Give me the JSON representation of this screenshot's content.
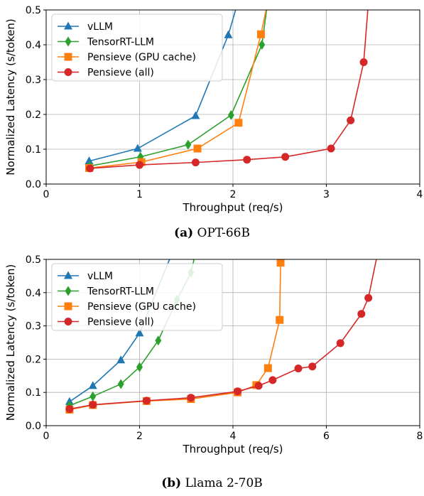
{
  "chart_data": [
    {
      "type": "line",
      "xlabel": "Throughput (req/s)",
      "ylabel": "Normalized Latency (s/token)",
      "xlim": [
        0,
        4
      ],
      "ylim": [
        0,
        0.5
      ],
      "xticks": [
        "0",
        "1",
        "2",
        "3",
        "4"
      ],
      "yticks": [
        "0.0",
        "0.1",
        "0.2",
        "0.3",
        "0.4",
        "0.5"
      ],
      "grid": true,
      "legend_position": "top-left",
      "series": [
        {
          "name": "vLLM",
          "color": "#1f77b4",
          "marker": "triangle",
          "points": [
            [
              0.46,
              0.066
            ],
            [
              0.98,
              0.102
            ],
            [
              1.6,
              0.196
            ],
            [
              1.95,
              0.428
            ],
            [
              2.05,
              0.52
            ]
          ]
        },
        {
          "name": "TensorRT-LLM",
          "color": "#2ca02c",
          "marker": "diamond",
          "points": [
            [
              0.47,
              0.052
            ],
            [
              1.01,
              0.078
            ],
            [
              1.52,
              0.113
            ],
            [
              1.98,
              0.198
            ],
            [
              2.31,
              0.4
            ],
            [
              2.37,
              0.52
            ]
          ]
        },
        {
          "name": "Pensieve (GPU cache)",
          "color": "#ff7f0e",
          "marker": "square",
          "points": [
            [
              0.46,
              0.046
            ],
            [
              1.02,
              0.063
            ],
            [
              1.62,
              0.102
            ],
            [
              2.06,
              0.176
            ],
            [
              2.3,
              0.43
            ],
            [
              2.37,
              0.52
            ]
          ]
        },
        {
          "name": "Pensieve (all)",
          "color": "#d62728",
          "marker": "circle",
          "points": [
            [
              0.47,
              0.045
            ],
            [
              1.0,
              0.055
            ],
            [
              1.6,
              0.062
            ],
            [
              2.15,
              0.07
            ],
            [
              2.56,
              0.078
            ],
            [
              3.05,
              0.102
            ],
            [
              3.26,
              0.183
            ],
            [
              3.4,
              0.35
            ],
            [
              3.45,
              0.52
            ]
          ]
        }
      ]
    },
    {
      "type": "line",
      "xlabel": "Throughput (req/s)",
      "ylabel": "Normalized Latency (s/token)",
      "xlim": [
        0,
        8
      ],
      "ylim": [
        0,
        0.5
      ],
      "xticks": [
        "0",
        "2",
        "4",
        "6",
        "8"
      ],
      "yticks": [
        "0.0",
        "0.1",
        "0.2",
        "0.3",
        "0.4",
        "0.5"
      ],
      "grid": true,
      "legend_position": "top-left",
      "series": [
        {
          "name": "vLLM",
          "color": "#1f77b4",
          "marker": "triangle",
          "points": [
            [
              0.5,
              0.072
            ],
            [
              1.0,
              0.12
            ],
            [
              1.6,
              0.197
            ],
            [
              2.0,
              0.278
            ],
            [
              2.7,
              0.52
            ]
          ]
        },
        {
          "name": "TensorRT-LLM",
          "color": "#2ca02c",
          "marker": "diamond",
          "points": [
            [
              0.5,
              0.06
            ],
            [
              1.0,
              0.088
            ],
            [
              1.6,
              0.125
            ],
            [
              2.0,
              0.176
            ],
            [
              2.4,
              0.256
            ],
            [
              2.8,
              0.378
            ],
            [
              3.1,
              0.46
            ],
            [
              3.2,
              0.52
            ]
          ]
        },
        {
          "name": "Pensieve (GPU cache)",
          "color": "#ff7f0e",
          "marker": "square",
          "points": [
            [
              0.5,
              0.048
            ],
            [
              1.0,
              0.062
            ],
            [
              2.15,
              0.074
            ],
            [
              3.1,
              0.08
            ],
            [
              4.1,
              0.1
            ],
            [
              4.5,
              0.122
            ],
            [
              4.75,
              0.173
            ],
            [
              5.0,
              0.318
            ],
            [
              5.02,
              0.49
            ],
            [
              5.03,
              0.52
            ]
          ]
        },
        {
          "name": "Pensieve (all)",
          "color": "#d62728",
          "marker": "circle",
          "points": [
            [
              0.5,
              0.05
            ],
            [
              1.0,
              0.063
            ],
            [
              2.15,
              0.075
            ],
            [
              3.1,
              0.084
            ],
            [
              4.1,
              0.103
            ],
            [
              4.55,
              0.12
            ],
            [
              4.85,
              0.137
            ],
            [
              5.4,
              0.172
            ],
            [
              5.7,
              0.178
            ],
            [
              6.3,
              0.248
            ],
            [
              6.75,
              0.336
            ],
            [
              6.9,
              0.384
            ],
            [
              7.1,
              0.52
            ]
          ]
        }
      ]
    }
  ],
  "captions": [
    {
      "label": "(a)",
      "text": "OPT-66B"
    },
    {
      "label": "(b)",
      "text": "Llama 2-70B"
    }
  ]
}
